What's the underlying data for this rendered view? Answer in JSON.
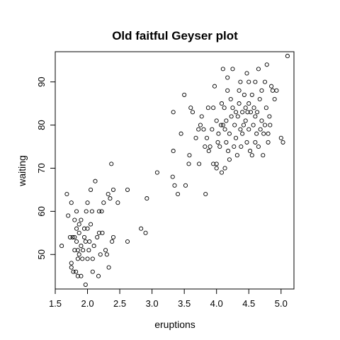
{
  "chart_data": {
    "type": "scatter",
    "title": "Old faitful Geyser plot",
    "xlabel": "eruptions",
    "ylabel": "waiting",
    "xlim": [
      1.5,
      5.2
    ],
    "ylim": [
      42,
      97
    ],
    "x_ticks": [
      "1.5",
      "2.0",
      "2.5",
      "3.0",
      "3.5",
      "4.0",
      "4.5",
      "5.0"
    ],
    "y_ticks": [
      "50",
      "60",
      "70",
      "80",
      "90"
    ],
    "grid": false,
    "marker": "open-circle",
    "point_color": "#000000",
    "points": [
      [
        1.6,
        52
      ],
      [
        1.68,
        64
      ],
      [
        1.7,
        59
      ],
      [
        1.73,
        54
      ],
      [
        1.75,
        47
      ],
      [
        1.75,
        48
      ],
      [
        1.75,
        62
      ],
      [
        1.77,
        54
      ],
      [
        1.78,
        46
      ],
      [
        1.8,
        51
      ],
      [
        1.8,
        54
      ],
      [
        1.8,
        58
      ],
      [
        1.82,
        46
      ],
      [
        1.83,
        53
      ],
      [
        1.83,
        56
      ],
      [
        1.83,
        60
      ],
      [
        1.85,
        49
      ],
      [
        1.85,
        45
      ],
      [
        1.85,
        51
      ],
      [
        1.87,
        50
      ],
      [
        1.87,
        55
      ],
      [
        1.87,
        57
      ],
      [
        1.9,
        45
      ],
      [
        1.9,
        52
      ],
      [
        1.9,
        58
      ],
      [
        1.92,
        49
      ],
      [
        1.93,
        51
      ],
      [
        1.95,
        54
      ],
      [
        1.95,
        56
      ],
      [
        1.97,
        43
      ],
      [
        1.97,
        53
      ],
      [
        1.98,
        60
      ],
      [
        2.0,
        49
      ],
      [
        2.0,
        56
      ],
      [
        2.0,
        62
      ],
      [
        2.02,
        51
      ],
      [
        2.03,
        53
      ],
      [
        2.05,
        57
      ],
      [
        2.05,
        65
      ],
      [
        2.07,
        60
      ],
      [
        2.08,
        46
      ],
      [
        2.08,
        49
      ],
      [
        2.1,
        52
      ],
      [
        2.12,
        67
      ],
      [
        2.15,
        54
      ],
      [
        2.17,
        45
      ],
      [
        2.18,
        60
      ],
      [
        2.18,
        55
      ],
      [
        2.2,
        50
      ],
      [
        2.22,
        60
      ],
      [
        2.23,
        55
      ],
      [
        2.25,
        62
      ],
      [
        2.28,
        51
      ],
      [
        2.3,
        50
      ],
      [
        2.32,
        64
      ],
      [
        2.33,
        47
      ],
      [
        2.35,
        63
      ],
      [
        2.37,
        71
      ],
      [
        2.38,
        53
      ],
      [
        2.4,
        65
      ],
      [
        2.4,
        54
      ],
      [
        2.47,
        62
      ],
      [
        2.62,
        53
      ],
      [
        2.62,
        65
      ],
      [
        2.83,
        56
      ],
      [
        2.9,
        55
      ],
      [
        2.92,
        63
      ],
      [
        3.08,
        69
      ],
      [
        3.32,
        68
      ],
      [
        3.33,
        74
      ],
      [
        3.33,
        83
      ],
      [
        3.35,
        66
      ],
      [
        3.4,
        64
      ],
      [
        3.45,
        78
      ],
      [
        3.5,
        87
      ],
      [
        3.52,
        66
      ],
      [
        3.57,
        71
      ],
      [
        3.58,
        73
      ],
      [
        3.6,
        84
      ],
      [
        3.63,
        83
      ],
      [
        3.68,
        77
      ],
      [
        3.72,
        79
      ],
      [
        3.73,
        71
      ],
      [
        3.75,
        80
      ],
      [
        3.77,
        82
      ],
      [
        3.8,
        79
      ],
      [
        3.82,
        75
      ],
      [
        3.83,
        64
      ],
      [
        3.85,
        77
      ],
      [
        3.87,
        84
      ],
      [
        3.88,
        74
      ],
      [
        3.9,
        75
      ],
      [
        3.93,
        79
      ],
      [
        3.95,
        84
      ],
      [
        3.95,
        71
      ],
      [
        3.97,
        89
      ],
      [
        4.0,
        81
      ],
      [
        4.0,
        70
      ],
      [
        4.0,
        71
      ],
      [
        4.02,
        76
      ],
      [
        4.03,
        78
      ],
      [
        4.05,
        75
      ],
      [
        4.07,
        80
      ],
      [
        4.08,
        85
      ],
      [
        4.08,
        69
      ],
      [
        4.1,
        80
      ],
      [
        4.1,
        93
      ],
      [
        4.12,
        84
      ],
      [
        4.13,
        79
      ],
      [
        4.13,
        70
      ],
      [
        4.15,
        76
      ],
      [
        4.15,
        81
      ],
      [
        4.17,
        88
      ],
      [
        4.17,
        91
      ],
      [
        4.18,
        74
      ],
      [
        4.2,
        78
      ],
      [
        4.2,
        72
      ],
      [
        4.22,
        86
      ],
      [
        4.23,
        82
      ],
      [
        4.25,
        84
      ],
      [
        4.25,
        93
      ],
      [
        4.27,
        75
      ],
      [
        4.28,
        80
      ],
      [
        4.3,
        77
      ],
      [
        4.3,
        83
      ],
      [
        4.32,
        73
      ],
      [
        4.33,
        82
      ],
      [
        4.35,
        85
      ],
      [
        4.35,
        88
      ],
      [
        4.37,
        79
      ],
      [
        4.37,
        90
      ],
      [
        4.38,
        75
      ],
      [
        4.4,
        83
      ],
      [
        4.4,
        78
      ],
      [
        4.42,
        80
      ],
      [
        4.43,
        87
      ],
      [
        4.45,
        81
      ],
      [
        4.45,
        84
      ],
      [
        4.47,
        92
      ],
      [
        4.47,
        76
      ],
      [
        4.48,
        83
      ],
      [
        4.5,
        79
      ],
      [
        4.5,
        90
      ],
      [
        4.5,
        85
      ],
      [
        4.52,
        74
      ],
      [
        4.53,
        83
      ],
      [
        4.55,
        87
      ],
      [
        4.55,
        73
      ],
      [
        4.57,
        80
      ],
      [
        4.58,
        84
      ],
      [
        4.6,
        76
      ],
      [
        4.6,
        82
      ],
      [
        4.6,
        90
      ],
      [
        4.62,
        78
      ],
      [
        4.63,
        83
      ],
      [
        4.65,
        75
      ],
      [
        4.65,
        93
      ],
      [
        4.67,
        86
      ],
      [
        4.68,
        79
      ],
      [
        4.7,
        81
      ],
      [
        4.7,
        88
      ],
      [
        4.72,
        73
      ],
      [
        4.73,
        78
      ],
      [
        4.75,
        80
      ],
      [
        4.75,
        90
      ],
      [
        4.77,
        84
      ],
      [
        4.78,
        94
      ],
      [
        4.8,
        78
      ],
      [
        4.8,
        76
      ],
      [
        4.82,
        82
      ],
      [
        4.83,
        80
      ],
      [
        4.85,
        89
      ],
      [
        4.87,
        88
      ],
      [
        4.9,
        86
      ],
      [
        4.93,
        88
      ],
      [
        5.0,
        77
      ],
      [
        5.03,
        76
      ],
      [
        5.1,
        96
      ]
    ]
  }
}
